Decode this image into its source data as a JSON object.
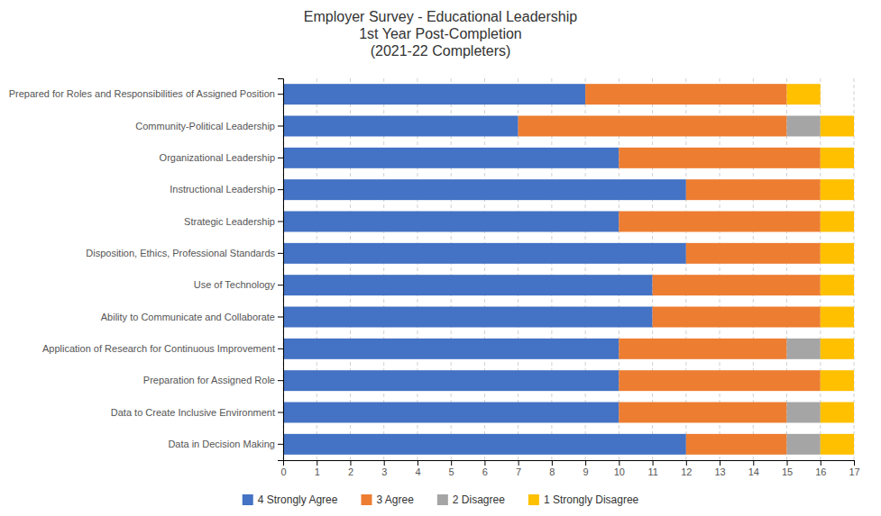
{
  "chart_data": {
    "type": "bar",
    "orientation": "horizontal",
    "stacked": true,
    "title": "Employer Survey - Educational Leadership\n1st Year Post-Completion\n(2021-22 Completers)",
    "categories": [
      "Data in Decision Making",
      "Data to Create Inclusive Environment",
      "Preparation for Assigned Role",
      "Application of Research for Continuous Improvement",
      "Ability to Communicate and Collaborate",
      "Use of Technology",
      "Disposition, Ethics, Professional Standards",
      "Strategic Leadership",
      "Instructional Leadership",
      "Organizational Leadership",
      "Community-Political Leadership",
      "Prepared for Roles and Responsibilities of Assigned Position"
    ],
    "series": [
      {
        "name": "4 Strongly Agree",
        "color": "#4472C4",
        "values": [
          12,
          10,
          10,
          10,
          11,
          11,
          12,
          10,
          12,
          10,
          7,
          9
        ]
      },
      {
        "name": "3 Agree",
        "color": "#ED7D31",
        "values": [
          3,
          5,
          6,
          5,
          5,
          5,
          4,
          6,
          4,
          6,
          8,
          6
        ]
      },
      {
        "name": "2 Disagree",
        "color": "#A5A5A5",
        "values": [
          1,
          1,
          0,
          1,
          0,
          0,
          0,
          0,
          0,
          0,
          1,
          0
        ]
      },
      {
        "name": "1 Strongly Disagree",
        "color": "#FFC000",
        "values": [
          1,
          1,
          1,
          1,
          1,
          1,
          1,
          1,
          1,
          1,
          1,
          1
        ]
      }
    ],
    "xlim": [
      0,
      17
    ],
    "xticks": [
      0,
      1,
      2,
      3,
      4,
      5,
      6,
      7,
      8,
      9,
      10,
      11,
      12,
      13,
      14,
      15,
      16,
      17
    ],
    "grid": true,
    "legend": "bottom"
  }
}
